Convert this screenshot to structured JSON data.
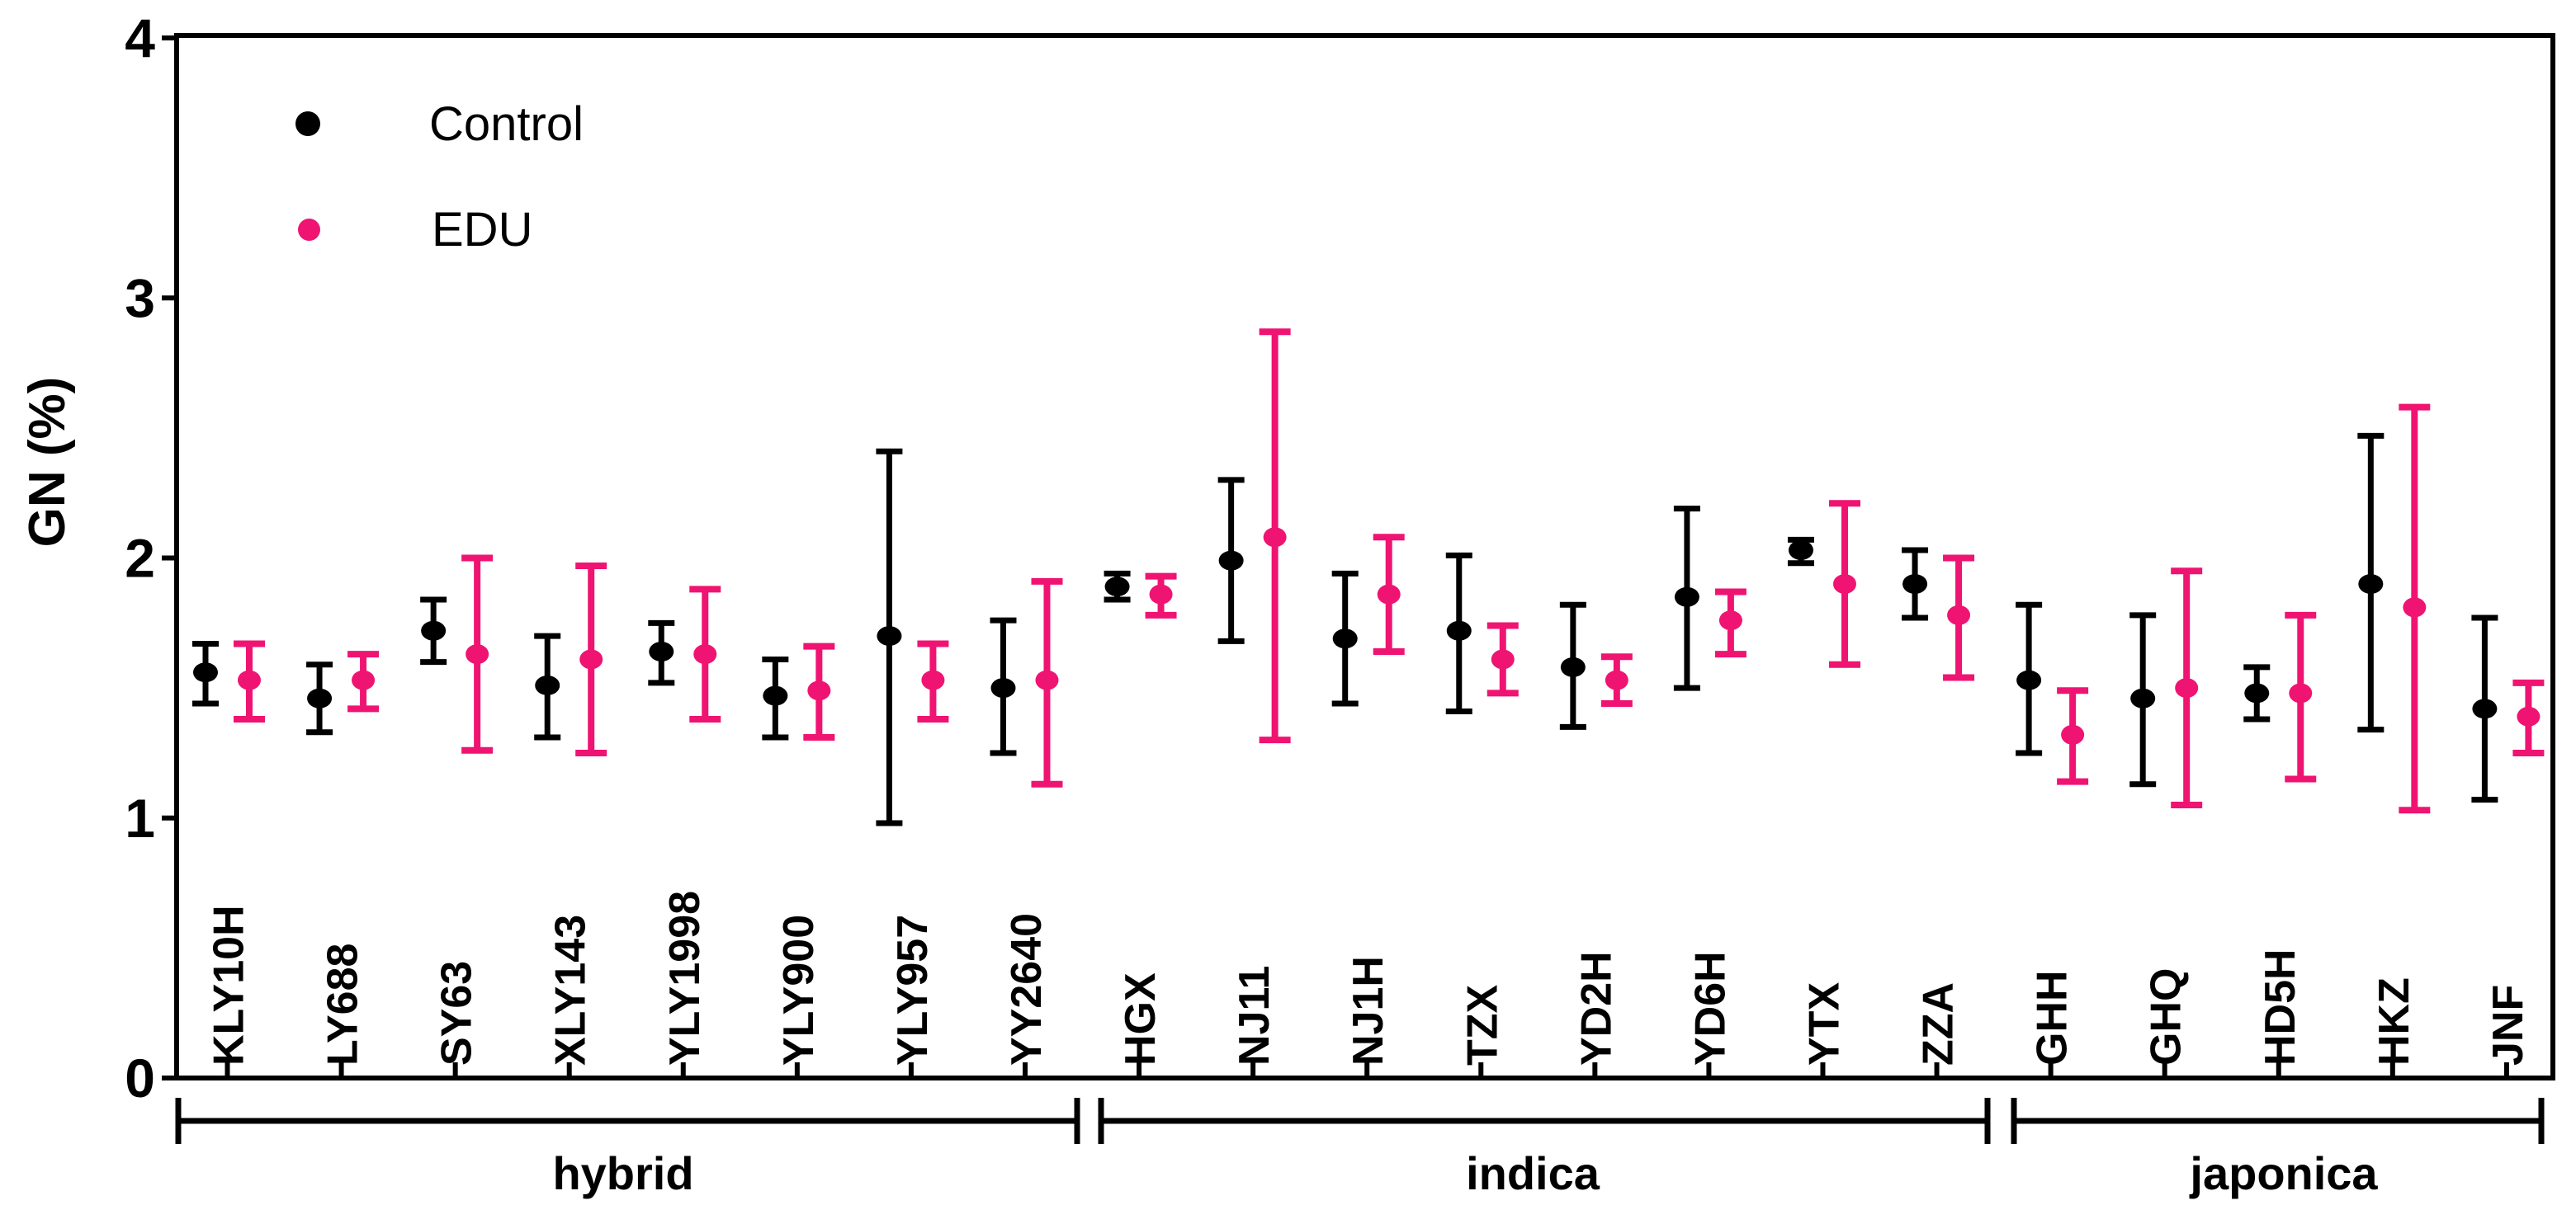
{
  "legend": {
    "items": [
      {
        "label": "Control",
        "color": "#000000"
      },
      {
        "label": "EDU",
        "color": "#EF1472"
      }
    ]
  },
  "chart_data": {
    "type": "scatter",
    "subtype": "mean-with-error-bars",
    "title": "",
    "xlabel": "",
    "ylabel": "GN (%)",
    "ylim": [
      0,
      4
    ],
    "yticks": [
      "0",
      "1",
      "2",
      "3",
      "4"
    ],
    "grid": false,
    "legend_position": "top-left-inside",
    "groups": [
      {
        "label": "hybrid",
        "varieties": [
          "KLY10H",
          "LY688",
          "SY63",
          "XLY143",
          "YLY1998",
          "YLY900",
          "YLY957",
          "YY2640"
        ]
      },
      {
        "label": "indica",
        "varieties": [
          "HGX",
          "NJ11",
          "NJ1H",
          "TZX",
          "YD2H",
          "YD6H",
          "YTX",
          "ZZA"
        ]
      },
      {
        "label": "japonica",
        "varieties": [
          "GHH",
          "GHQ",
          "HD5H",
          "HKZ",
          "JNF"
        ]
      }
    ],
    "categories": [
      "KLY10H",
      "LY688",
      "SY63",
      "XLY143",
      "YLY1998",
      "YLY900",
      "YLY957",
      "YY2640",
      "HGX",
      "NJ11",
      "NJ1H",
      "TZX",
      "YD2H",
      "YD6H",
      "YTX",
      "ZZA",
      "GHH",
      "GHQ",
      "HD5H",
      "HKZ",
      "JNF"
    ],
    "series": [
      {
        "name": "Control",
        "color": "#000000",
        "points": [
          {
            "mean": 1.56,
            "lo": 1.44,
            "hi": 1.67
          },
          {
            "mean": 1.46,
            "lo": 1.33,
            "hi": 1.59
          },
          {
            "mean": 1.72,
            "lo": 1.6,
            "hi": 1.84
          },
          {
            "mean": 1.51,
            "lo": 1.31,
            "hi": 1.7
          },
          {
            "mean": 1.64,
            "lo": 1.52,
            "hi": 1.75
          },
          {
            "mean": 1.47,
            "lo": 1.31,
            "hi": 1.61
          },
          {
            "mean": 1.7,
            "lo": 0.98,
            "hi": 2.41
          },
          {
            "mean": 1.5,
            "lo": 1.25,
            "hi": 1.76
          },
          {
            "mean": 1.89,
            "lo": 1.84,
            "hi": 1.94
          },
          {
            "mean": 1.99,
            "lo": 1.68,
            "hi": 2.3
          },
          {
            "mean": 1.69,
            "lo": 1.44,
            "hi": 1.94
          },
          {
            "mean": 1.72,
            "lo": 1.41,
            "hi": 2.01
          },
          {
            "mean": 1.58,
            "lo": 1.35,
            "hi": 1.82
          },
          {
            "mean": 1.85,
            "lo": 1.5,
            "hi": 2.19
          },
          {
            "mean": 2.03,
            "lo": 1.98,
            "hi": 2.07
          },
          {
            "mean": 1.9,
            "lo": 1.77,
            "hi": 2.03
          },
          {
            "mean": 1.53,
            "lo": 1.25,
            "hi": 1.82
          },
          {
            "mean": 1.46,
            "lo": 1.13,
            "hi": 1.78
          },
          {
            "mean": 1.48,
            "lo": 1.38,
            "hi": 1.58
          },
          {
            "mean": 1.9,
            "lo": 1.34,
            "hi": 2.47
          },
          {
            "mean": 1.42,
            "lo": 1.07,
            "hi": 1.77
          }
        ]
      },
      {
        "name": "EDU",
        "color": "#EF1472",
        "points": [
          {
            "mean": 1.53,
            "lo": 1.38,
            "hi": 1.67
          },
          {
            "mean": 1.53,
            "lo": 1.42,
            "hi": 1.63
          },
          {
            "mean": 1.63,
            "lo": 1.26,
            "hi": 2.0
          },
          {
            "mean": 1.61,
            "lo": 1.25,
            "hi": 1.97
          },
          {
            "mean": 1.63,
            "lo": 1.38,
            "hi": 1.88
          },
          {
            "mean": 1.49,
            "lo": 1.31,
            "hi": 1.66
          },
          {
            "mean": 1.53,
            "lo": 1.38,
            "hi": 1.67
          },
          {
            "mean": 1.53,
            "lo": 1.13,
            "hi": 1.91
          },
          {
            "mean": 1.86,
            "lo": 1.78,
            "hi": 1.93
          },
          {
            "mean": 2.08,
            "lo": 1.3,
            "hi": 2.87
          },
          {
            "mean": 1.86,
            "lo": 1.64,
            "hi": 2.08
          },
          {
            "mean": 1.61,
            "lo": 1.48,
            "hi": 1.74
          },
          {
            "mean": 1.53,
            "lo": 1.44,
            "hi": 1.62
          },
          {
            "mean": 1.76,
            "lo": 1.63,
            "hi": 1.87
          },
          {
            "mean": 1.9,
            "lo": 1.59,
            "hi": 2.21
          },
          {
            "mean": 1.78,
            "lo": 1.54,
            "hi": 2.0
          },
          {
            "mean": 1.32,
            "lo": 1.14,
            "hi": 1.49
          },
          {
            "mean": 1.5,
            "lo": 1.05,
            "hi": 1.95
          },
          {
            "mean": 1.48,
            "lo": 1.15,
            "hi": 1.78
          },
          {
            "mean": 1.81,
            "lo": 1.03,
            "hi": 2.58
          },
          {
            "mean": 1.39,
            "lo": 1.25,
            "hi": 1.52
          }
        ]
      }
    ]
  }
}
